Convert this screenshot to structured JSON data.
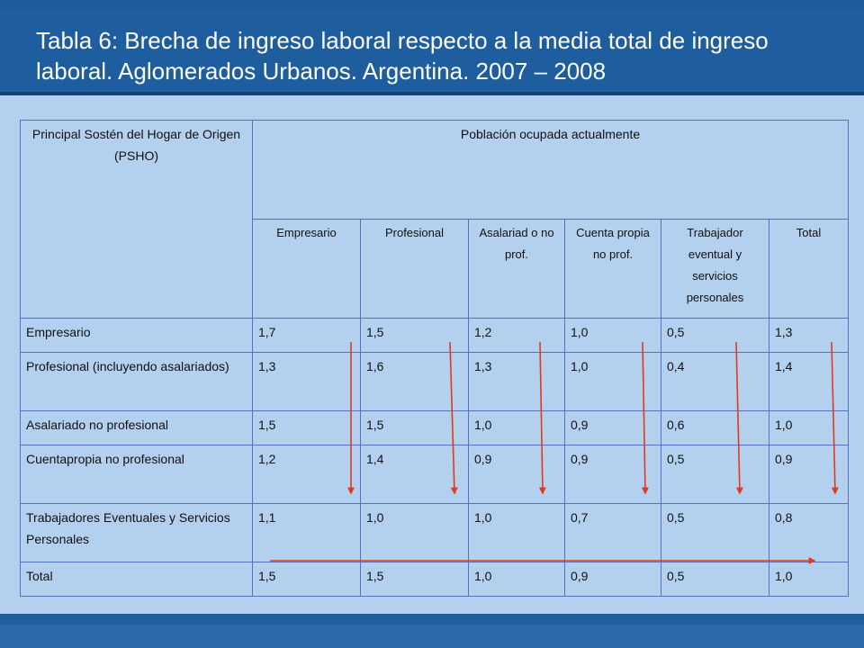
{
  "title": "Tabla 6: Brecha de ingreso laboral respecto a la media total de ingreso laboral. Aglomerados Urbanos. Argentina. 2007 – 2008",
  "table": {
    "row_header": "Principal Sostén del Hogar de Origen (PSHO)",
    "group_header": "Población ocupada actualmente",
    "columns": [
      "Empresario",
      "Profesional",
      "Asalariad o no prof.",
      "Cuenta propia no prof.",
      "Trabajador eventual y servicios personales",
      "Total"
    ],
    "rows": [
      {
        "label": "Empresario",
        "values": [
          "1,7",
          "1,5",
          "1,2",
          "1,0",
          "0,5",
          "1,3"
        ]
      },
      {
        "label": "Profesional (incluyendo asalariados)",
        "values": [
          "1,3",
          "1,6",
          "1,3",
          "1,0",
          "0,4",
          "1,4"
        ]
      },
      {
        "label": "Asalariado no profesional",
        "values": [
          "1,5",
          "1,5",
          "1,0",
          "0,9",
          "0,6",
          "1,0"
        ]
      },
      {
        "label": "Cuentapropia no profesional",
        "values": [
          "1,2",
          "1,4",
          "0,9",
          "0,9",
          "0,5",
          "0,9"
        ]
      },
      {
        "label": "Trabajadores Eventuales y Servicios Personales",
        "values": [
          "1,1",
          "1,0",
          "1,0",
          "0,7",
          "0,5",
          "0,8"
        ]
      },
      {
        "label": "Total",
        "values": [
          "1,5",
          "1,5",
          "1,0",
          "0,9",
          "0,5",
          "1,0"
        ]
      }
    ]
  },
  "colors": {
    "title_band": "#1e5d9e",
    "background": "#b3d0ee",
    "arrow": "#e03a1e",
    "grid": "#5a6ec0"
  }
}
